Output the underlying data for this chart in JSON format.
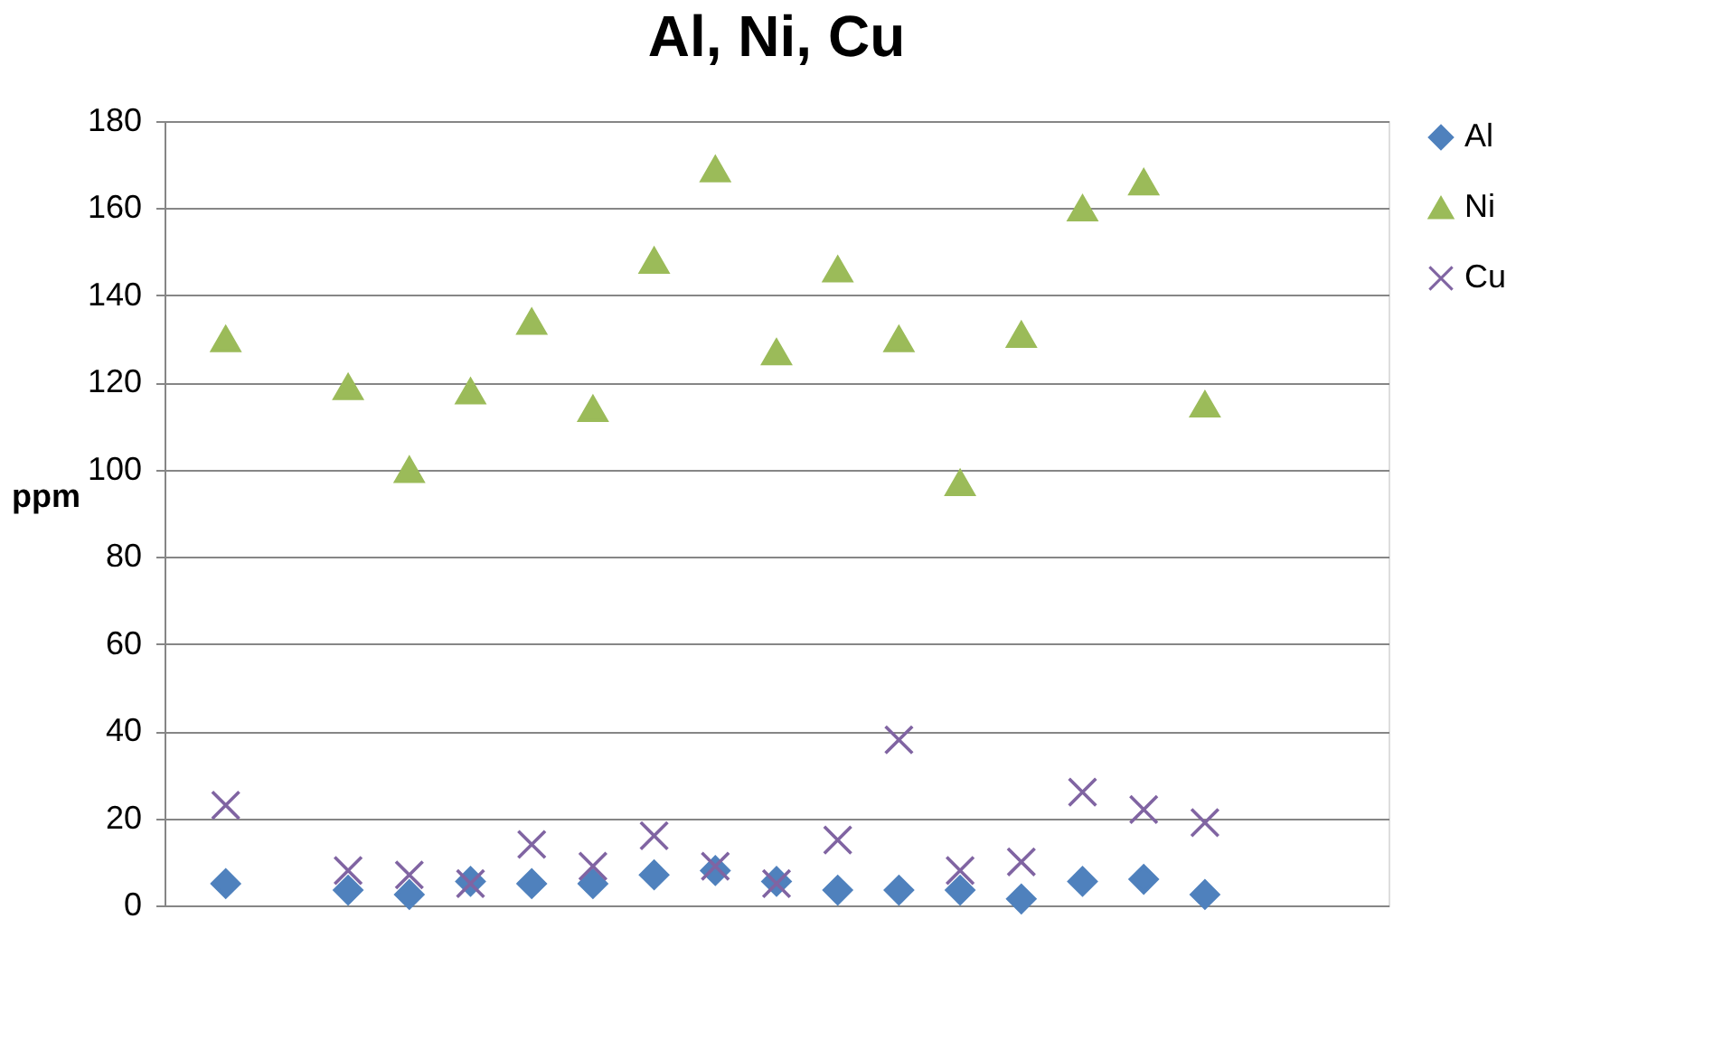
{
  "chart_data": {
    "type": "scatter",
    "title": "Al, Ni, Cu",
    "ylabel": "ppm",
    "categories": [
      null,
      null,
      null,
      null,
      null,
      null,
      null,
      null,
      null,
      null,
      null,
      null,
      null,
      null,
      null,
      null,
      null,
      null,
      null
    ],
    "series": [
      {
        "name": "Al",
        "color": "#4f81bd",
        "marker": "diamond",
        "values": [
          5,
          null,
          3.5,
          2.5,
          5.5,
          5,
          5,
          7,
          8,
          5.5,
          3.5,
          3.5,
          3.5,
          1.5,
          5.5,
          6,
          2.5,
          null,
          null
        ]
      },
      {
        "name": "Ni",
        "color": "#9bbb59",
        "marker": "triangle",
        "values": [
          130,
          null,
          119,
          100,
          118,
          134,
          114,
          148,
          169,
          127,
          146,
          130,
          97,
          131,
          160,
          166,
          115,
          null,
          null
        ]
      },
      {
        "name": "Cu",
        "color": "#8064a2",
        "marker": "cross",
        "values": [
          23,
          null,
          8,
          7,
          5,
          14,
          9,
          16,
          9,
          5,
          15,
          38,
          8,
          10,
          26,
          22,
          19,
          null,
          null
        ]
      }
    ],
    "ylim": [
      0,
      180
    ],
    "yticks": [
      0,
      20,
      40,
      60,
      80,
      100,
      120,
      140,
      160,
      180
    ],
    "grid": "y",
    "legend": "right",
    "tick_labels": "y"
  }
}
